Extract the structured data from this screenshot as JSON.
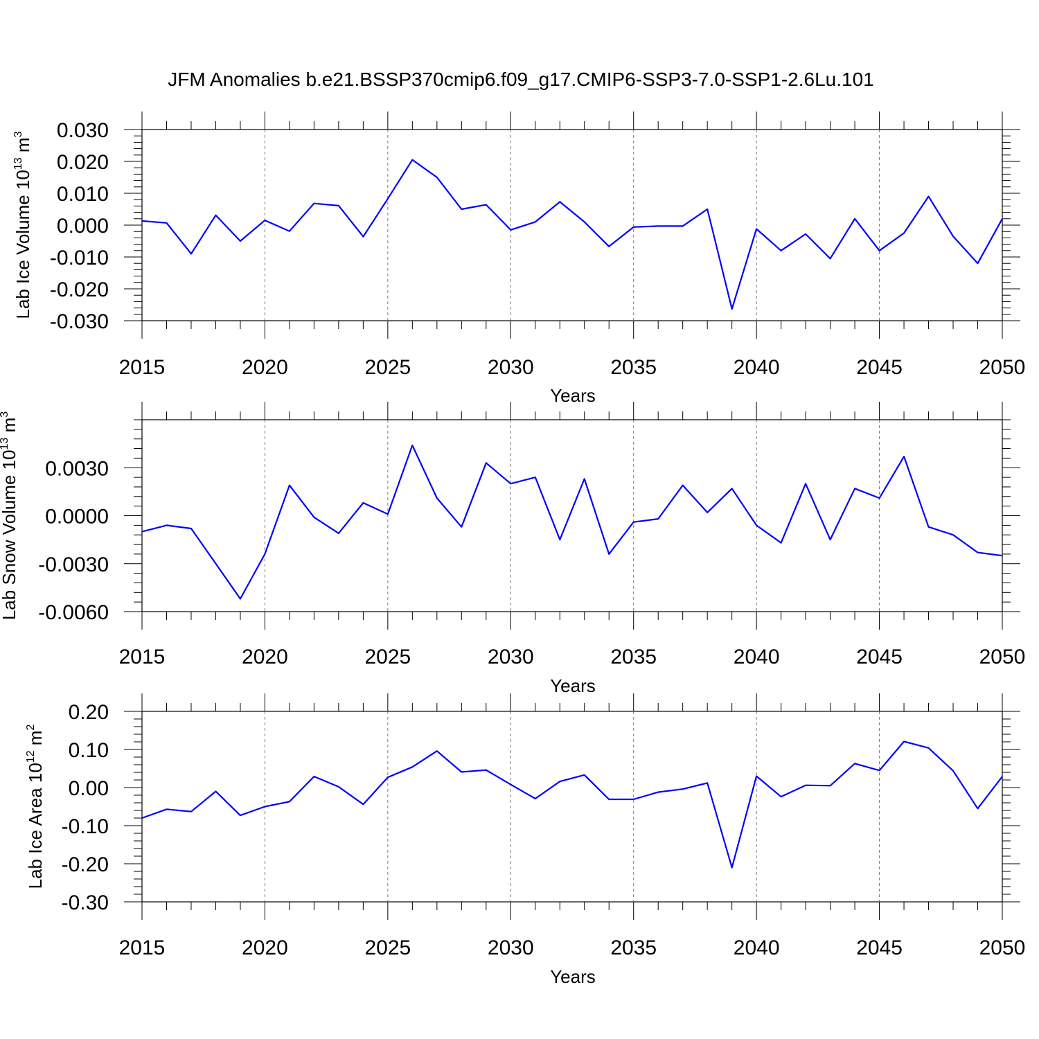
{
  "title": "JFM Anomalies b.e21.BSSP370cmip6.f09_g17.CMIP6-SSP3-7.0-SSP1-2.6Lu.101",
  "colors": {
    "line": "#0000ff",
    "axes": "#000000",
    "grid": "#777777"
  },
  "chart_data": [
    {
      "type": "line",
      "ylabel_main": "Lab Ice Volume 10",
      "ylabel_exp": "13",
      "ylabel_unit": "m",
      "ylabel_unit_exp": "3",
      "xlabel": "Years",
      "xlim": [
        2015,
        2050
      ],
      "ylim": [
        -0.03,
        0.03
      ],
      "yticks": [
        "0.030",
        "0.020",
        "0.010",
        "0.000",
        "-0.010",
        "-0.020",
        "-0.030"
      ],
      "ytick_values": [
        0.03,
        0.02,
        0.01,
        0.0,
        -0.01,
        -0.02,
        -0.03
      ],
      "xticks": [
        "2015",
        "2020",
        "2025",
        "2030",
        "2035",
        "2040",
        "2045",
        "2050"
      ],
      "grid": "dashed vertical at major x ticks",
      "x": [
        2015,
        2016,
        2017,
        2018,
        2019,
        2020,
        2021,
        2022,
        2023,
        2024,
        2025,
        2026,
        2027,
        2028,
        2029,
        2030,
        2031,
        2032,
        2033,
        2034,
        2035,
        2036,
        2037,
        2038,
        2039,
        2040,
        2041,
        2042,
        2043,
        2044,
        2045,
        2046,
        2047,
        2048,
        2049,
        2050
      ],
      "values": [
        0.0013,
        0.0007,
        -0.009,
        0.0031,
        -0.005,
        0.0015,
        -0.0019,
        0.0068,
        0.0061,
        -0.0036,
        0.0083,
        0.0205,
        0.015,
        0.005,
        0.0064,
        -0.0015,
        0.001,
        0.0073,
        0.001,
        -0.0067,
        -0.0006,
        -0.0003,
        -0.0003,
        0.005,
        -0.0263,
        -0.0012,
        -0.008,
        -0.0028,
        -0.0105,
        0.002,
        -0.008,
        -0.0025,
        0.009,
        -0.0035,
        -0.012,
        0.002
      ]
    },
    {
      "type": "line",
      "ylabel_main": "Lab Snow Volume 10",
      "ylabel_exp": "13",
      "ylabel_unit": "m",
      "ylabel_unit_exp": "3",
      "xlabel": "Years",
      "xlim": [
        2015,
        2050
      ],
      "ylim": [
        -0.006,
        0.006
      ],
      "yticks": [
        "0.0030",
        "0.0000",
        "-0.0030",
        "-0.0060"
      ],
      "ytick_values": [
        0.003,
        0.0,
        -0.003,
        -0.006
      ],
      "xticks": [
        "2015",
        "2020",
        "2025",
        "2030",
        "2035",
        "2040",
        "2045",
        "2050"
      ],
      "grid": "dashed vertical at major x ticks",
      "x": [
        2015,
        2016,
        2017,
        2018,
        2019,
        2020,
        2021,
        2022,
        2023,
        2024,
        2025,
        2026,
        2027,
        2028,
        2029,
        2030,
        2031,
        2032,
        2033,
        2034,
        2035,
        2036,
        2037,
        2038,
        2039,
        2040,
        2041,
        2042,
        2043,
        2044,
        2045,
        2046,
        2047,
        2048,
        2049,
        2050
      ],
      "values": [
        -0.001,
        -0.0006,
        -0.0008,
        -0.003,
        -0.0052,
        -0.0024,
        0.0019,
        -0.0001,
        -0.0011,
        0.0008,
        0.0001,
        0.0044,
        0.0011,
        -0.0007,
        0.0033,
        0.002,
        0.0024,
        -0.0015,
        0.0023,
        -0.0024,
        -0.0004,
        -0.0002,
        0.0019,
        0.0002,
        0.0017,
        -0.0006,
        -0.0017,
        0.002,
        -0.0015,
        0.0017,
        0.0011,
        0.0037,
        -0.0007,
        -0.0012,
        -0.0023,
        -0.0025
      ]
    },
    {
      "type": "line",
      "ylabel_main": "Lab Ice Area 10",
      "ylabel_exp": "12",
      "ylabel_unit": "m",
      "ylabel_unit_exp": "2",
      "xlabel": "Years",
      "xlim": [
        2015,
        2050
      ],
      "ylim": [
        -0.3,
        0.2
      ],
      "yticks": [
        "0.20",
        "0.10",
        "0.00",
        "-0.10",
        "-0.20",
        "-0.30"
      ],
      "ytick_values": [
        0.2,
        0.1,
        0.0,
        -0.1,
        -0.2,
        -0.3
      ],
      "xticks": [
        "2015",
        "2020",
        "2025",
        "2030",
        "2035",
        "2040",
        "2045",
        "2050"
      ],
      "grid": "dashed vertical at major x ticks",
      "x": [
        2015,
        2016,
        2017,
        2018,
        2019,
        2020,
        2021,
        2022,
        2023,
        2024,
        2025,
        2026,
        2027,
        2028,
        2029,
        2030,
        2031,
        2032,
        2033,
        2034,
        2035,
        2036,
        2037,
        2038,
        2039,
        2040,
        2041,
        2042,
        2043,
        2044,
        2045,
        2046,
        2047,
        2048,
        2049,
        2050
      ],
      "values": [
        -0.08,
        -0.057,
        -0.063,
        -0.01,
        -0.073,
        -0.05,
        -0.037,
        0.029,
        0.002,
        -0.044,
        0.027,
        0.054,
        0.096,
        0.041,
        0.046,
        0.008,
        -0.029,
        0.016,
        0.033,
        -0.031,
        -0.031,
        -0.012,
        -0.004,
        0.012,
        -0.21,
        0.03,
        -0.024,
        0.006,
        0.005,
        0.063,
        0.045,
        0.121,
        0.104,
        0.044,
        -0.055,
        0.029
      ]
    }
  ]
}
